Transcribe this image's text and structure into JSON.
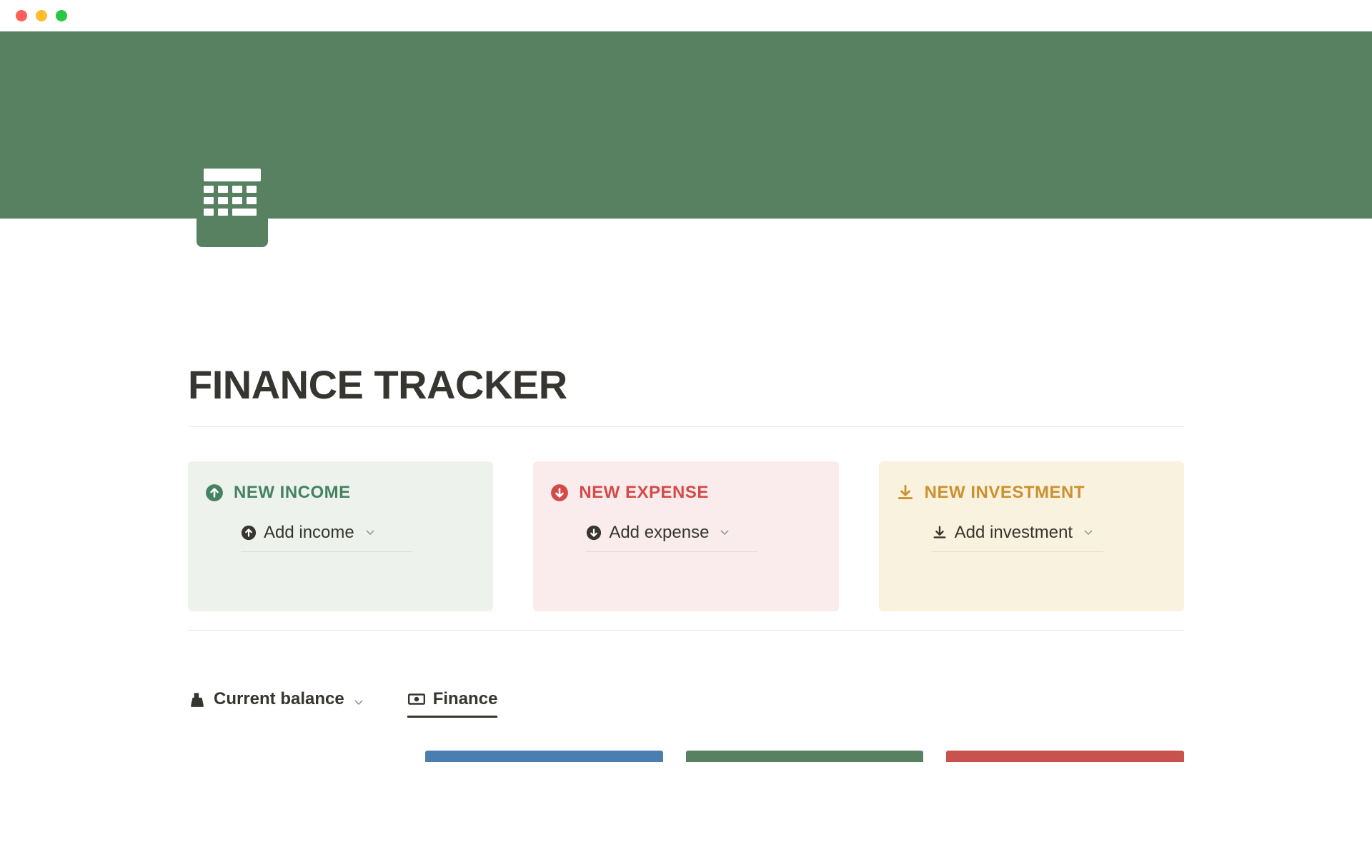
{
  "window": {
    "traffic_colors": {
      "red": "#ff5f57",
      "yellow": "#febc2e",
      "green": "#28c840"
    }
  },
  "cover": {
    "background_color": "#578160"
  },
  "page_icon": {
    "name": "calculator-icon",
    "color": "#578160"
  },
  "page": {
    "title": "FINANCE TRACKER",
    "title_color": "#37352f",
    "title_fontsize": 56,
    "divider_color": "#e9e9e7"
  },
  "cards": [
    {
      "id": "income",
      "heading": "NEW INCOME",
      "heading_color": "#448361",
      "bg_color": "#eef2ec",
      "head_icon": "arrow-up-circle-icon",
      "head_icon_color": "#448361",
      "action_label": "Add income",
      "action_icon": "arrow-up-circle-icon",
      "action_icon_color": "#37352f"
    },
    {
      "id": "expense",
      "heading": "NEW EXPENSE",
      "heading_color": "#d44a48",
      "bg_color": "#faecec",
      "head_icon": "arrow-down-circle-icon",
      "head_icon_color": "#d44a48",
      "action_label": "Add expense",
      "action_icon": "arrow-down-circle-icon",
      "action_icon_color": "#37352f"
    },
    {
      "id": "investment",
      "heading": "NEW INVESTMENT",
      "heading_color": "#cb912f",
      "bg_color": "#f9f2df",
      "head_icon": "download-icon",
      "head_icon_color": "#cb912f",
      "action_label": "Add investment",
      "action_icon": "download-icon",
      "action_icon_color": "#37352f"
    }
  ],
  "action_text_color": "#37352f",
  "chevron_color": "#9b9a97",
  "tabs": [
    {
      "id": "balance",
      "label": "Current balance",
      "icon": "cash-register-icon",
      "active": false,
      "has_chevron": true
    },
    {
      "id": "finance",
      "label": "Finance",
      "icon": "money-bill-icon",
      "active": true,
      "has_chevron": false
    }
  ],
  "peek_bars": {
    "colors": [
      "#4a7eb0",
      "#578160",
      "#c8524c"
    ]
  }
}
